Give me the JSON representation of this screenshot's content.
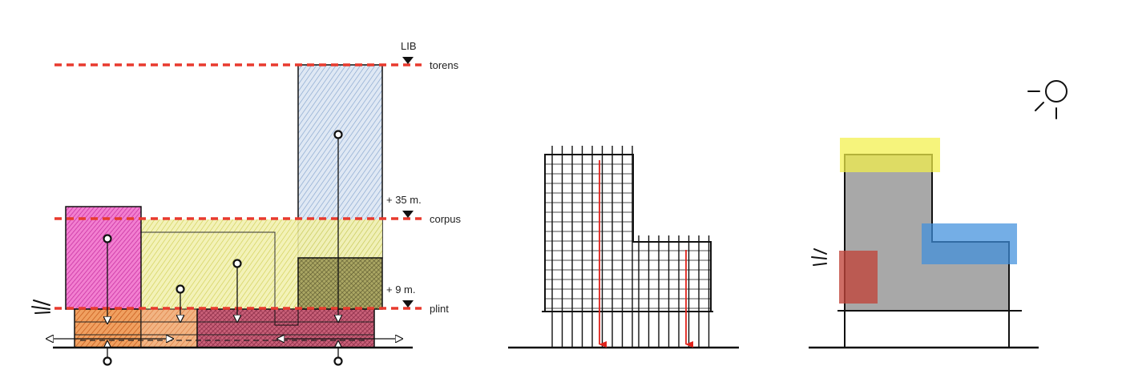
{
  "levels": {
    "lib": "LIB",
    "torens": "torens",
    "corpus": "corpus",
    "plint": "plint",
    "plus35": "+ 35 m.",
    "plus9": "+ 9 m."
  },
  "colors": {
    "level_line": "#e83a2e",
    "tower_blue": "#a9c3e3",
    "corpus_yellow": "#e6e57a",
    "magenta": "#e85fc0",
    "orange": "#e9873c",
    "burgundy": "#b1455e",
    "dark_khaki": "#8f8c4a",
    "grey_mass": "#a8a8a8",
    "highlight_yellow": "#f3f04a",
    "highlight_blue": "#3f8fdc",
    "highlight_red": "#c0443a",
    "arrow_red": "#e0221b"
  },
  "icons": {
    "sun": "sun-icon",
    "sound": "sound-waves-icon"
  }
}
